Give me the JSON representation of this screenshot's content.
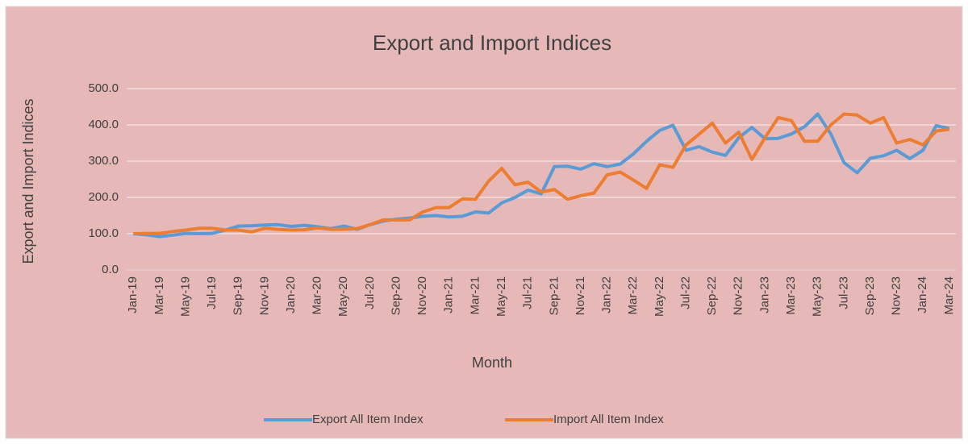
{
  "chart_data": {
    "type": "line",
    "title": "Export and Import Indices",
    "x_label": "Month",
    "y_label": "Export and Import Indices",
    "categories": [
      "Jan-19",
      null,
      "Mar-19",
      null,
      "May-19",
      null,
      "Jul-19",
      null,
      "Sep-19",
      null,
      "Nov-19",
      null,
      "Jan-20",
      null,
      "Mar-20",
      null,
      "May-20",
      null,
      "Jul-20",
      null,
      "Sep-20",
      null,
      "Nov-20",
      null,
      "Jan-21",
      null,
      "Mar-21",
      null,
      "May-21",
      null,
      "Jul-21",
      null,
      "Sep-21",
      null,
      "Nov-21",
      null,
      "Jan-22",
      null,
      "Mar-22",
      null,
      "May-22",
      null,
      "Jul-22",
      null,
      "Sep-22",
      null,
      "Nov-22",
      null,
      "Jan-23",
      null,
      "Mar-23",
      null,
      "May-23",
      null,
      "Jul-23",
      null,
      "Sep-23",
      null,
      "Nov-23",
      null,
      "Jan-24",
      null,
      "Mar-24"
    ],
    "series": [
      {
        "name": "Export All Item Index",
        "color": "#5b9bd5",
        "values": [
          100,
          97,
          92,
          96,
          101,
          100,
          101,
          110,
          121,
          122,
          124,
          125,
          120,
          123,
          119,
          114,
          121,
          112,
          125,
          135,
          140,
          143,
          148,
          150,
          146,
          148,
          160,
          157,
          185,
          200,
          220,
          210,
          285,
          286,
          278,
          293,
          285,
          292,
          320,
          355,
          385,
          399,
          330,
          340,
          325,
          316,
          365,
          393,
          362,
          363,
          375,
          395,
          430,
          375,
          296,
          268,
          308,
          315,
          330,
          307,
          330,
          398,
          390
        ]
      },
      {
        "name": "Import All Item Index",
        "color": "#ed7d31",
        "values": [
          100,
          101,
          101,
          106,
          110,
          115,
          115,
          110,
          110,
          105,
          115,
          112,
          110,
          111,
          116,
          112,
          112,
          114,
          125,
          138,
          138,
          138,
          160,
          172,
          172,
          196,
          195,
          245,
          280,
          235,
          242,
          215,
          222,
          195,
          205,
          212,
          262,
          270,
          248,
          225,
          290,
          283,
          345,
          375,
          405,
          350,
          380,
          305,
          365,
          420,
          412,
          355,
          355,
          400,
          430,
          427,
          405,
          420,
          350,
          360,
          345,
          383,
          388
        ]
      }
    ],
    "ylim": [
      0,
      500
    ],
    "yticks": [
      {
        "value": 0,
        "label": "0.0"
      },
      {
        "value": 100,
        "label": "100.0"
      },
      {
        "value": 200,
        "label": "200.0"
      },
      {
        "value": 300,
        "label": "300.0"
      },
      {
        "value": 400,
        "label": "400.0"
      },
      {
        "value": 500,
        "label": "500.0"
      }
    ],
    "grid": true,
    "legend": "bottom"
  }
}
